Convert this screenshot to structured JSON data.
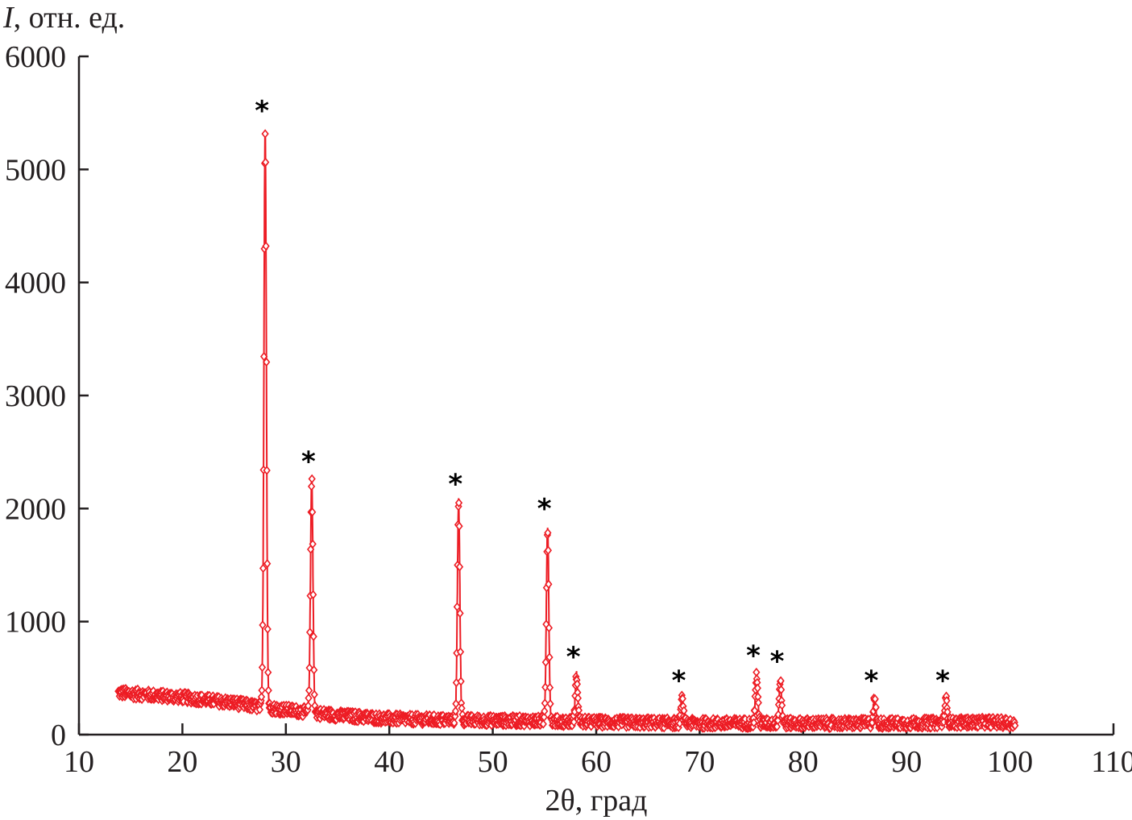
{
  "chart_data": {
    "type": "line",
    "title": "",
    "ylabel_italic": "I",
    "ylabel_rest": ", отн. ед.",
    "xlabel": "2θ, град",
    "xlim": [
      10,
      110
    ],
    "ylim": [
      0,
      6000
    ],
    "x_ticks": [
      10,
      20,
      30,
      40,
      50,
      60,
      70,
      80,
      90,
      100,
      110
    ],
    "y_ticks": [
      0,
      1000,
      2000,
      3000,
      4000,
      5000,
      6000
    ],
    "grid": false,
    "series_color": "#ed1c24",
    "marker": "diamond-open",
    "x_range_measured": [
      13.8,
      100.5
    ],
    "step": 0.02,
    "background": {
      "x": [
        13.8,
        20,
        25,
        27,
        30,
        32,
        35,
        40,
        45,
        50,
        55,
        60,
        70,
        80,
        90,
        98,
        100.5
      ],
      "y": [
        370,
        330,
        280,
        250,
        220,
        200,
        170,
        140,
        130,
        125,
        120,
        110,
        100,
        100,
        100,
        110,
        100
      ]
    },
    "peaks": [
      {
        "x": 28.0,
        "intensity": 5350,
        "label": "*"
      },
      {
        "x": 32.5,
        "intensity": 2250,
        "label": "*"
      },
      {
        "x": 46.7,
        "intensity": 2050,
        "label": "*"
      },
      {
        "x": 55.3,
        "intensity": 1830,
        "label": "*"
      },
      {
        "x": 58.1,
        "intensity": 520,
        "label": "*"
      },
      {
        "x": 68.3,
        "intensity": 310,
        "label": "*"
      },
      {
        "x": 75.5,
        "intensity": 530,
        "label": "*"
      },
      {
        "x": 77.8,
        "intensity": 480,
        "label": "*"
      },
      {
        "x": 86.9,
        "intensity": 310,
        "label": "*"
      },
      {
        "x": 93.8,
        "intensity": 310,
        "label": "*"
      }
    ]
  }
}
